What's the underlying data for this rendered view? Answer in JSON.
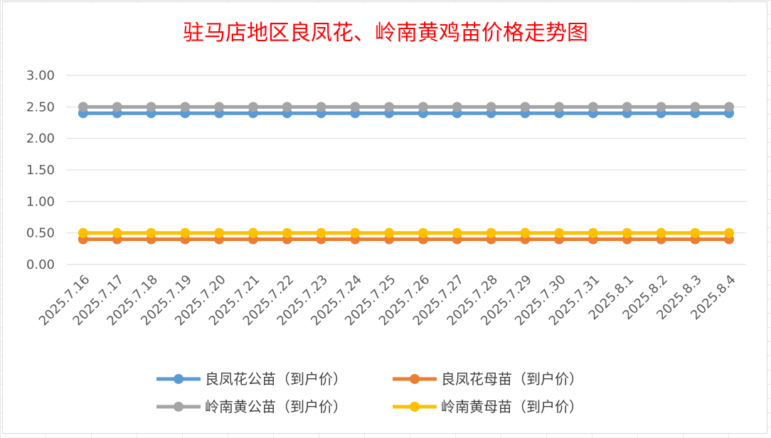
{
  "chart_data": {
    "type": "line",
    "title": "驻马店地区良凤花、岭南黄鸡苗价格走势图",
    "xlabel": "",
    "ylabel": "",
    "ylim": [
      0,
      3
    ],
    "y_ticks": [
      "0.00",
      "0.50",
      "1.00",
      "1.50",
      "2.00",
      "2.50",
      "3.00"
    ],
    "categories": [
      "2025.7.16",
      "2025.7.17",
      "2025.7.18",
      "2025.7.19",
      "2025.7.20",
      "2025.7.21",
      "2025.7.22",
      "2025.7.23",
      "2025.7.24",
      "2025.7.25",
      "2025.7.26",
      "2025.7.27",
      "2025.7.28",
      "2025.7.29",
      "2025.7.30",
      "2025.7.31",
      "2025.8.1",
      "2025.8.2",
      "2025.8.3",
      "2025.8.4"
    ],
    "series": [
      {
        "name": "良凤花公苗（到户价）",
        "color": "#5b9bd5",
        "values": [
          2.4,
          2.4,
          2.4,
          2.4,
          2.4,
          2.4,
          2.4,
          2.4,
          2.4,
          2.4,
          2.4,
          2.4,
          2.4,
          2.4,
          2.4,
          2.4,
          2.4,
          2.4,
          2.4,
          2.4
        ]
      },
      {
        "name": "良凤花母苗（到户价）",
        "color": "#ed7d31",
        "values": [
          0.4,
          0.4,
          0.4,
          0.4,
          0.4,
          0.4,
          0.4,
          0.4,
          0.4,
          0.4,
          0.4,
          0.4,
          0.4,
          0.4,
          0.4,
          0.4,
          0.4,
          0.4,
          0.4,
          0.4
        ]
      },
      {
        "name": "岭南黄公苗（到户价）",
        "color": "#a5a5a5",
        "values": [
          2.5,
          2.5,
          2.5,
          2.5,
          2.5,
          2.5,
          2.5,
          2.5,
          2.5,
          2.5,
          2.5,
          2.5,
          2.5,
          2.5,
          2.5,
          2.5,
          2.5,
          2.5,
          2.5,
          2.5
        ]
      },
      {
        "name": "岭南黄母苗（到户价）",
        "color": "#ffc000",
        "values": [
          0.5,
          0.5,
          0.5,
          0.5,
          0.5,
          0.5,
          0.5,
          0.5,
          0.5,
          0.5,
          0.5,
          0.5,
          0.5,
          0.5,
          0.5,
          0.5,
          0.5,
          0.5,
          0.5,
          0.5
        ]
      }
    ],
    "grid": true,
    "legend_position": "bottom"
  }
}
